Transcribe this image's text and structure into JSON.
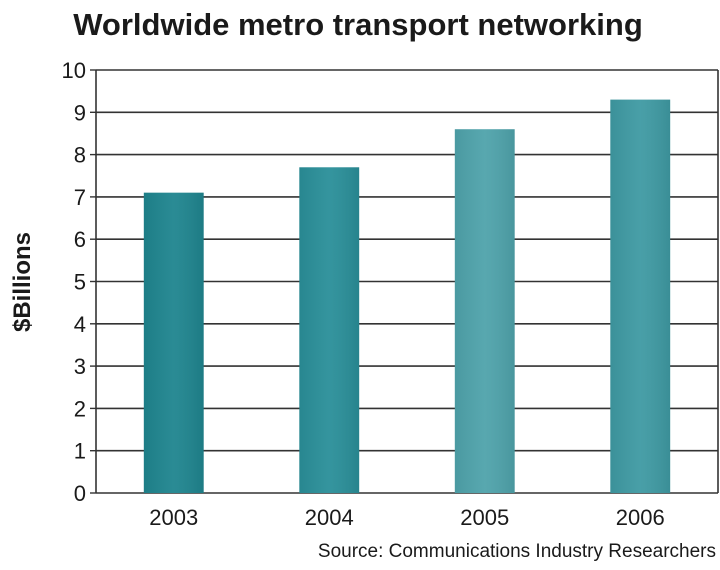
{
  "chart_data": {
    "type": "bar",
    "title": "Worldwide metro transport networking",
    "xlabel": "",
    "ylabel": "$Billions",
    "categories": [
      "2003",
      "2004",
      "2005",
      "2006"
    ],
    "values": [
      7.1,
      7.7,
      8.6,
      9.3
    ],
    "ylim": [
      0,
      10
    ],
    "yticks": [
      0,
      1,
      2,
      3,
      4,
      5,
      6,
      7,
      8,
      9,
      10
    ],
    "grid": true,
    "legend": "none",
    "source": "Source: Communications Industry Researchers",
    "bar_colors": [
      "#1f858f",
      "#2a8f99",
      "#4fa3ab",
      "#3f9aa3"
    ],
    "gridline_color": "#333333",
    "background": "#ffffff"
  }
}
